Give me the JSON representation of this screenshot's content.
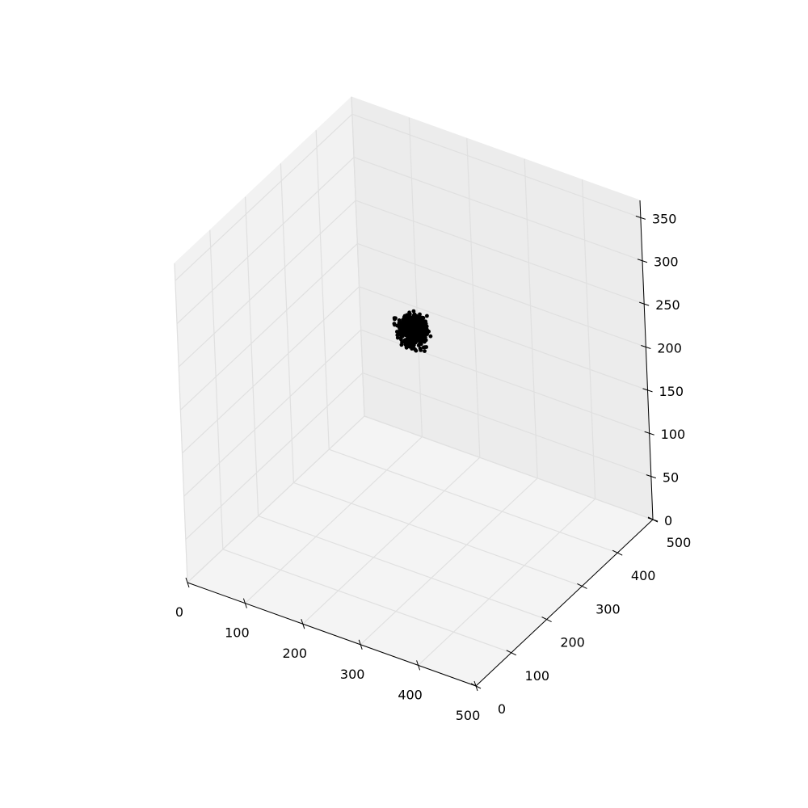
{
  "chart_data": {
    "type": "scatter",
    "projection": "3d",
    "title": "",
    "xlabel": "",
    "ylabel": "",
    "zlabel": "",
    "xlim": [
      0,
      500
    ],
    "ylim": [
      0,
      500
    ],
    "zlim": [
      0,
      370
    ],
    "x_ticks": [
      "0",
      "100",
      "200",
      "300",
      "400",
      "500"
    ],
    "y_ticks": [
      "0",
      "100",
      "200",
      "300",
      "400",
      "500"
    ],
    "z_ticks": [
      "0",
      "50",
      "100",
      "150",
      "200",
      "250",
      "300",
      "350"
    ],
    "grid": true,
    "legend": "none",
    "series": [
      {
        "marker_color": "#000000",
        "cluster_center": {
          "x": 150,
          "y": 410,
          "z": 170
        },
        "cluster_spread": {
          "x": 25,
          "y": 25,
          "z": 18
        },
        "points": [
          {
            "x": 150,
            "y": 410,
            "z": 170
          },
          {
            "x": 138,
            "y": 402,
            "z": 176
          },
          {
            "x": 162,
            "y": 418,
            "z": 164
          },
          {
            "x": 145,
            "y": 425,
            "z": 180
          },
          {
            "x": 158,
            "y": 395,
            "z": 160
          },
          {
            "x": 130,
            "y": 415,
            "z": 168
          },
          {
            "x": 170,
            "y": 405,
            "z": 175
          },
          {
            "x": 148,
            "y": 390,
            "z": 185
          },
          {
            "x": 155,
            "y": 430,
            "z": 158
          },
          {
            "x": 126,
            "y": 398,
            "z": 182
          }
        ]
      }
    ]
  }
}
